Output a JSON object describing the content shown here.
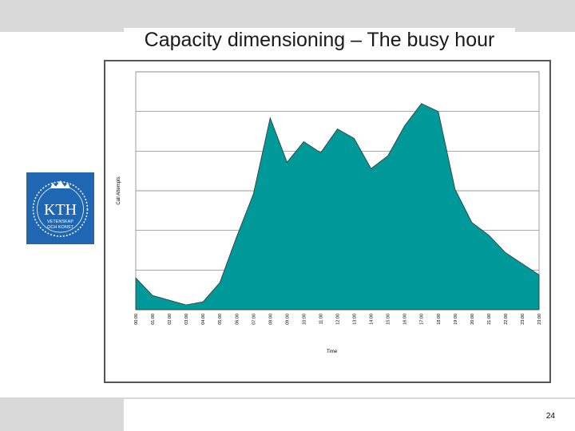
{
  "slide": {
    "title": "Capacity dimensioning – The busy hour",
    "page_number": "24"
  },
  "logo": {
    "text": "KTH",
    "subtext_1": "VETENSKAP",
    "subtext_2": "OCH KONST",
    "color": "#1f66b3"
  },
  "colors": {
    "area_fill": "#009999",
    "area_stroke": "#333333",
    "band": "#d9d9d9"
  },
  "chart_data": {
    "type": "area",
    "title": "",
    "xlabel": "Time",
    "ylabel": "Call Attempts",
    "categories": [
      "00:00",
      "01:00",
      "02:00",
      "03:00",
      "04:00",
      "05:00",
      "06:00",
      "07:00",
      "08:00",
      "09:00",
      "10:00",
      "11:00",
      "12:00",
      "13:00",
      "14:00",
      "15:00",
      "16:00",
      "17:00",
      "18:00",
      "19:00",
      "20:00",
      "21:00",
      "22:00",
      "23:00",
      "23:00"
    ],
    "values": [
      20,
      9,
      6,
      3,
      5,
      17,
      46,
      73,
      121,
      93,
      106,
      99,
      114,
      108,
      89,
      97,
      116,
      130,
      125,
      76,
      55,
      47,
      36,
      29,
      22
    ],
    "ylim": [
      0,
      150
    ],
    "y_ticks": [
      0,
      25,
      50,
      75,
      100,
      125,
      150
    ],
    "y_tick_labels_shown": false,
    "grid": true,
    "legend": "none"
  }
}
